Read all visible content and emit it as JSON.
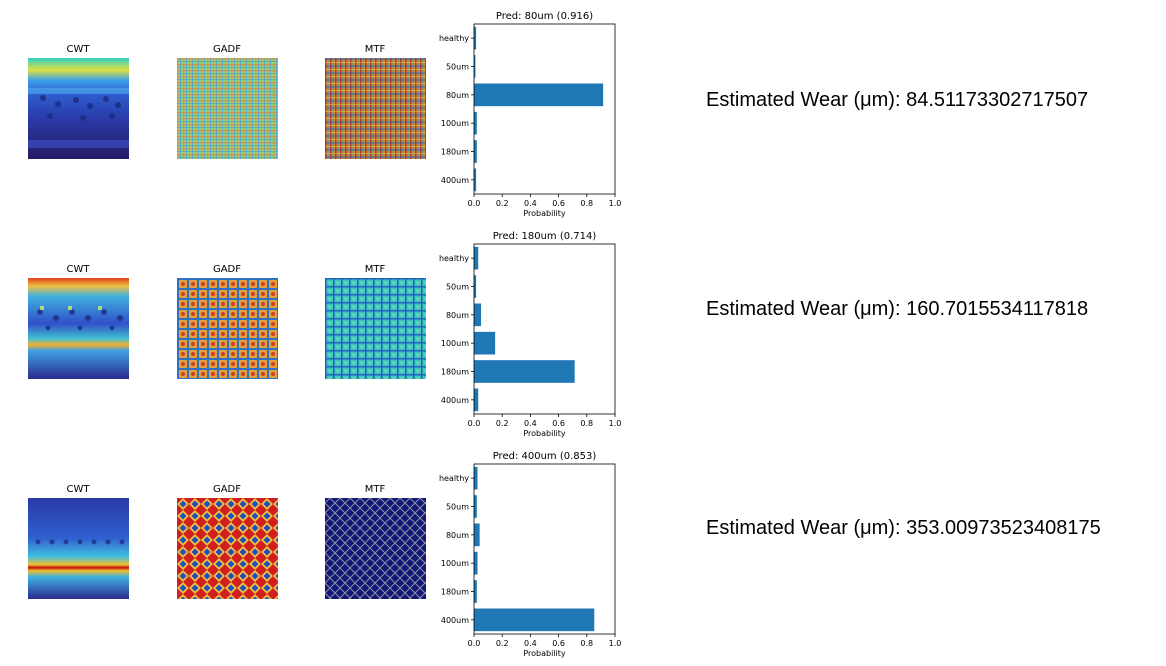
{
  "rows": [
    {
      "cwt_title": "CWT",
      "gadf_title": "GADF",
      "mtf_title": "MTF",
      "wear_label": "Estimated Wear (μm): 84.51173302717507"
    },
    {
      "cwt_title": "CWT",
      "gadf_title": "GADF",
      "mtf_title": "MTF",
      "wear_label": "Estimated Wear (μm): 160.7015534117818"
    },
    {
      "cwt_title": "CWT",
      "gadf_title": "GADF",
      "mtf_title": "MTF",
      "wear_label": "Estimated Wear (μm): 353.00973523408175"
    }
  ],
  "chart_data": [
    {
      "type": "bar",
      "orientation": "horizontal",
      "title": "Pred: 80um (0.916)",
      "xlabel": "Probability",
      "ylabel": "",
      "categories": [
        "healthy",
        "50um",
        "80um",
        "100um",
        "180um",
        "400um"
      ],
      "values": [
        0.015,
        0.01,
        0.916,
        0.02,
        0.02,
        0.015
      ],
      "xlim": [
        0,
        1.0
      ],
      "xticks": [
        "0.0",
        "0.2",
        "0.4",
        "0.6",
        "0.8",
        "1.0"
      ],
      "color": "#1f77b4"
    },
    {
      "type": "bar",
      "orientation": "horizontal",
      "title": "Pred: 180um (0.714)",
      "xlabel": "Probability",
      "ylabel": "",
      "categories": [
        "healthy",
        "50um",
        "80um",
        "100um",
        "180um",
        "400um"
      ],
      "values": [
        0.03,
        0.015,
        0.05,
        0.15,
        0.714,
        0.03
      ],
      "xlim": [
        0,
        1.0
      ],
      "xticks": [
        "0.0",
        "0.2",
        "0.4",
        "0.6",
        "0.8",
        "1.0"
      ],
      "color": "#1f77b4"
    },
    {
      "type": "bar",
      "orientation": "horizontal",
      "title": "Pred: 400um (0.853)",
      "xlabel": "Probability",
      "ylabel": "",
      "categories": [
        "healthy",
        "50um",
        "80um",
        "100um",
        "180um",
        "400um"
      ],
      "values": [
        0.025,
        0.02,
        0.04,
        0.025,
        0.02,
        0.853
      ],
      "xlim": [
        0,
        1.0
      ],
      "xticks": [
        "0.0",
        "0.2",
        "0.4",
        "0.6",
        "0.8",
        "1.0"
      ],
      "color": "#1f77b4"
    }
  ]
}
